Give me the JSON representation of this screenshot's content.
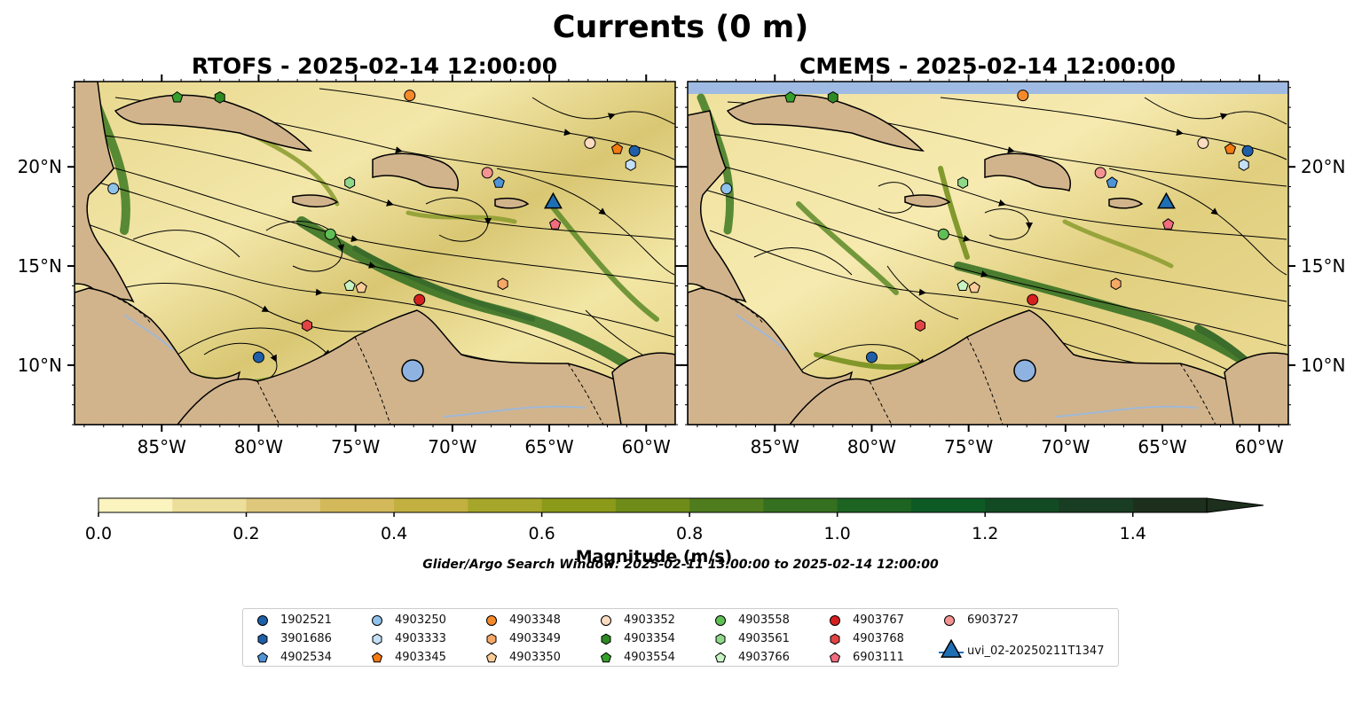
{
  "figure": {
    "suptitle": "Currents (0 m)",
    "search_window": "Glider/Argo Search Window: 2025-02-11 13:00:00 to 2025-02-14 12:00:00"
  },
  "panels": [
    {
      "title": "RTOFS - 2025-02-14 12:00:00"
    },
    {
      "title": "CMEMS - 2025-02-14 12:00:00"
    }
  ],
  "map": {
    "lon_range": [
      -89.5,
      -58.5
    ],
    "lat_range": [
      7.0,
      24.3
    ],
    "lon_ticks": [
      "85°W",
      "80°W",
      "75°W",
      "70°W",
      "65°W",
      "60°W"
    ],
    "lon_tick_values": [
      -85,
      -80,
      -75,
      -70,
      -65,
      -60
    ],
    "lat_ticks": [
      "10°N",
      "15°N",
      "20°N"
    ],
    "lat_tick_values": [
      10,
      15,
      20
    ],
    "colors": {
      "land": "#d2b48c",
      "lake": "#8fb3e0",
      "river": "#9fb8d6",
      "no_data": "#9fbbe3"
    }
  },
  "colorbar": {
    "label": "Magnitude (m/s)",
    "min": 0.0,
    "max": 1.5,
    "extend": "max",
    "tick_labels": [
      "0.0",
      "0.2",
      "0.4",
      "0.6",
      "0.8",
      "1.0",
      "1.2",
      "1.4"
    ],
    "tick_values": [
      0.0,
      0.2,
      0.4,
      0.6,
      0.8,
      1.0,
      1.2,
      1.4
    ],
    "levels": [
      "#fbf4bf",
      "#ecde9b",
      "#dfc77c",
      "#d3b95a",
      "#c2b040",
      "#a6a62a",
      "#8c9a19",
      "#6f8c18",
      "#4f7c1d",
      "#356f20",
      "#1d6322",
      "#0d5a25",
      "#124b23",
      "#183d22",
      "#1d301d"
    ]
  },
  "legend": [
    {
      "name": "1902521",
      "marker": "circle",
      "color": "#1f5fa8"
    },
    {
      "name": "3901686",
      "marker": "hexagon",
      "color": "#1f5fa8"
    },
    {
      "name": "4902534",
      "marker": "pentagon",
      "color": "#4e94d6"
    },
    {
      "name": "4903250",
      "marker": "circle",
      "color": "#8fc1ea"
    },
    {
      "name": "4903333",
      "marker": "hexagon",
      "color": "#c4e0f7"
    },
    {
      "name": "4903345",
      "marker": "pentagon",
      "color": "#f47a10"
    },
    {
      "name": "4903348",
      "marker": "circle",
      "color": "#f48a2a"
    },
    {
      "name": "4903349",
      "marker": "hexagon",
      "color": "#f6a867"
    },
    {
      "name": "4903350",
      "marker": "pentagon",
      "color": "#f9cc9a"
    },
    {
      "name": "4903352",
      "marker": "circle",
      "color": "#fbdcc0"
    },
    {
      "name": "4903354",
      "marker": "hexagon",
      "color": "#2e8b24"
    },
    {
      "name": "4903554",
      "marker": "pentagon",
      "color": "#35a02c"
    },
    {
      "name": "4903558",
      "marker": "circle",
      "color": "#5fbf55"
    },
    {
      "name": "4903561",
      "marker": "hexagon",
      "color": "#8fd88a"
    },
    {
      "name": "4903766",
      "marker": "pentagon",
      "color": "#c8f3c2"
    },
    {
      "name": "4903767",
      "marker": "circle",
      "color": "#d62020"
    },
    {
      "name": "4903768",
      "marker": "hexagon",
      "color": "#e04444"
    },
    {
      "name": "6903111",
      "marker": "pentagon",
      "color": "#f06c7e"
    },
    {
      "name": "6903727",
      "marker": "circle",
      "color": "#f59393"
    },
    {
      "name": "uvi_02-20250211T1347",
      "marker": "triangle",
      "color": "#1f6fb4"
    }
  ],
  "chart_data": {
    "type": "scatter",
    "xlabel": "",
    "ylabel": "",
    "series": [
      {
        "name": "1902521",
        "marker": "circle",
        "color": "#1f5fa8",
        "points": {
          "rtofs": [
            [
              -80.0,
              10.4
            ],
            [
              -60.6,
              20.8
            ]
          ],
          "cmems": [
            [
              -80.0,
              10.4
            ],
            [
              -60.6,
              20.8
            ]
          ]
        }
      },
      {
        "name": "4902534",
        "marker": "pentagon",
        "color": "#4e94d6",
        "points": {
          "rtofs": [
            [
              -67.6,
              19.2
            ]
          ],
          "cmems": [
            [
              -67.6,
              19.2
            ]
          ]
        }
      },
      {
        "name": "4903250",
        "marker": "circle",
        "color": "#8fc1ea",
        "points": {
          "rtofs": [
            [
              -87.5,
              18.9
            ]
          ],
          "cmems": [
            [
              -87.5,
              18.9
            ]
          ]
        }
      },
      {
        "name": "4903333",
        "marker": "hexagon",
        "color": "#c4e0f7",
        "points": {
          "rtofs": [
            [
              -60.8,
              20.1
            ]
          ],
          "cmems": [
            [
              -60.8,
              20.1
            ]
          ]
        }
      },
      {
        "name": "4903345",
        "marker": "pentagon",
        "color": "#f47a10",
        "points": {
          "rtofs": [
            [
              -61.5,
              20.9
            ]
          ],
          "cmems": [
            [
              -61.5,
              20.9
            ]
          ]
        }
      },
      {
        "name": "4903348",
        "marker": "circle",
        "color": "#f48a2a",
        "points": {
          "rtofs": [
            [
              -72.2,
              23.6
            ]
          ],
          "cmems": [
            [
              -72.2,
              23.6
            ]
          ]
        }
      },
      {
        "name": "4903349",
        "marker": "hexagon",
        "color": "#f6a867",
        "points": {
          "rtofs": [
            [
              -67.4,
              14.1
            ]
          ],
          "cmems": [
            [
              -67.4,
              14.1
            ]
          ]
        }
      },
      {
        "name": "4903350",
        "marker": "pentagon",
        "color": "#f9cc9a",
        "points": {
          "rtofs": [
            [
              -74.7,
              13.9
            ]
          ],
          "cmems": [
            [
              -74.7,
              13.9
            ]
          ]
        }
      },
      {
        "name": "4903352",
        "marker": "circle",
        "color": "#fbdcc0",
        "points": {
          "rtofs": [
            [
              -62.9,
              21.2
            ]
          ],
          "cmems": [
            [
              -62.9,
              21.2
            ]
          ]
        }
      },
      {
        "name": "4903354",
        "marker": "hexagon",
        "color": "#2e8b24",
        "points": {
          "rtofs": [
            [
              -82.0,
              23.5
            ]
          ],
          "cmems": [
            [
              -82.0,
              23.5
            ]
          ]
        }
      },
      {
        "name": "4903554",
        "marker": "pentagon",
        "color": "#35a02c",
        "points": {
          "rtofs": [
            [
              -84.2,
              23.5
            ]
          ],
          "cmems": [
            [
              -84.2,
              23.5
            ]
          ]
        }
      },
      {
        "name": "4903558",
        "marker": "circle",
        "color": "#5fbf55",
        "points": {
          "rtofs": [
            [
              -76.3,
              16.6
            ]
          ],
          "cmems": [
            [
              -76.3,
              16.6
            ]
          ]
        }
      },
      {
        "name": "4903561",
        "marker": "hexagon",
        "color": "#8fd88a",
        "points": {
          "rtofs": [
            [
              -75.3,
              19.2
            ]
          ],
          "cmems": [
            [
              -75.3,
              19.2
            ]
          ]
        }
      },
      {
        "name": "4903766",
        "marker": "pentagon",
        "color": "#c8f3c2",
        "points": {
          "rtofs": [
            [
              -75.3,
              14.0
            ]
          ],
          "cmems": [
            [
              -75.3,
              14.0
            ]
          ]
        }
      },
      {
        "name": "4903767",
        "marker": "circle",
        "color": "#d62020",
        "points": {
          "rtofs": [
            [
              -71.7,
              13.3
            ]
          ],
          "cmems": [
            [
              -71.7,
              13.3
            ]
          ]
        }
      },
      {
        "name": "4903768",
        "marker": "hexagon",
        "color": "#e04444",
        "points": {
          "rtofs": [
            [
              -77.5,
              12.0
            ]
          ],
          "cmems": [
            [
              -77.5,
              12.0
            ]
          ]
        }
      },
      {
        "name": "6903111",
        "marker": "pentagon",
        "color": "#f06c7e",
        "points": {
          "rtofs": [
            [
              -64.7,
              17.1
            ]
          ],
          "cmems": [
            [
              -64.7,
              17.1
            ]
          ]
        }
      },
      {
        "name": "6903727",
        "marker": "circle",
        "color": "#f59393",
        "points": {
          "rtofs": [
            [
              -68.2,
              19.7
            ]
          ],
          "cmems": [
            [
              -68.2,
              19.7
            ]
          ]
        }
      },
      {
        "name": "uvi_02-20250211T1347",
        "marker": "triangle",
        "color": "#1f6fb4",
        "points": {
          "rtofs": [
            [
              -64.8,
              18.2
            ]
          ],
          "cmems": [
            [
              -64.8,
              18.2
            ]
          ]
        }
      }
    ]
  }
}
